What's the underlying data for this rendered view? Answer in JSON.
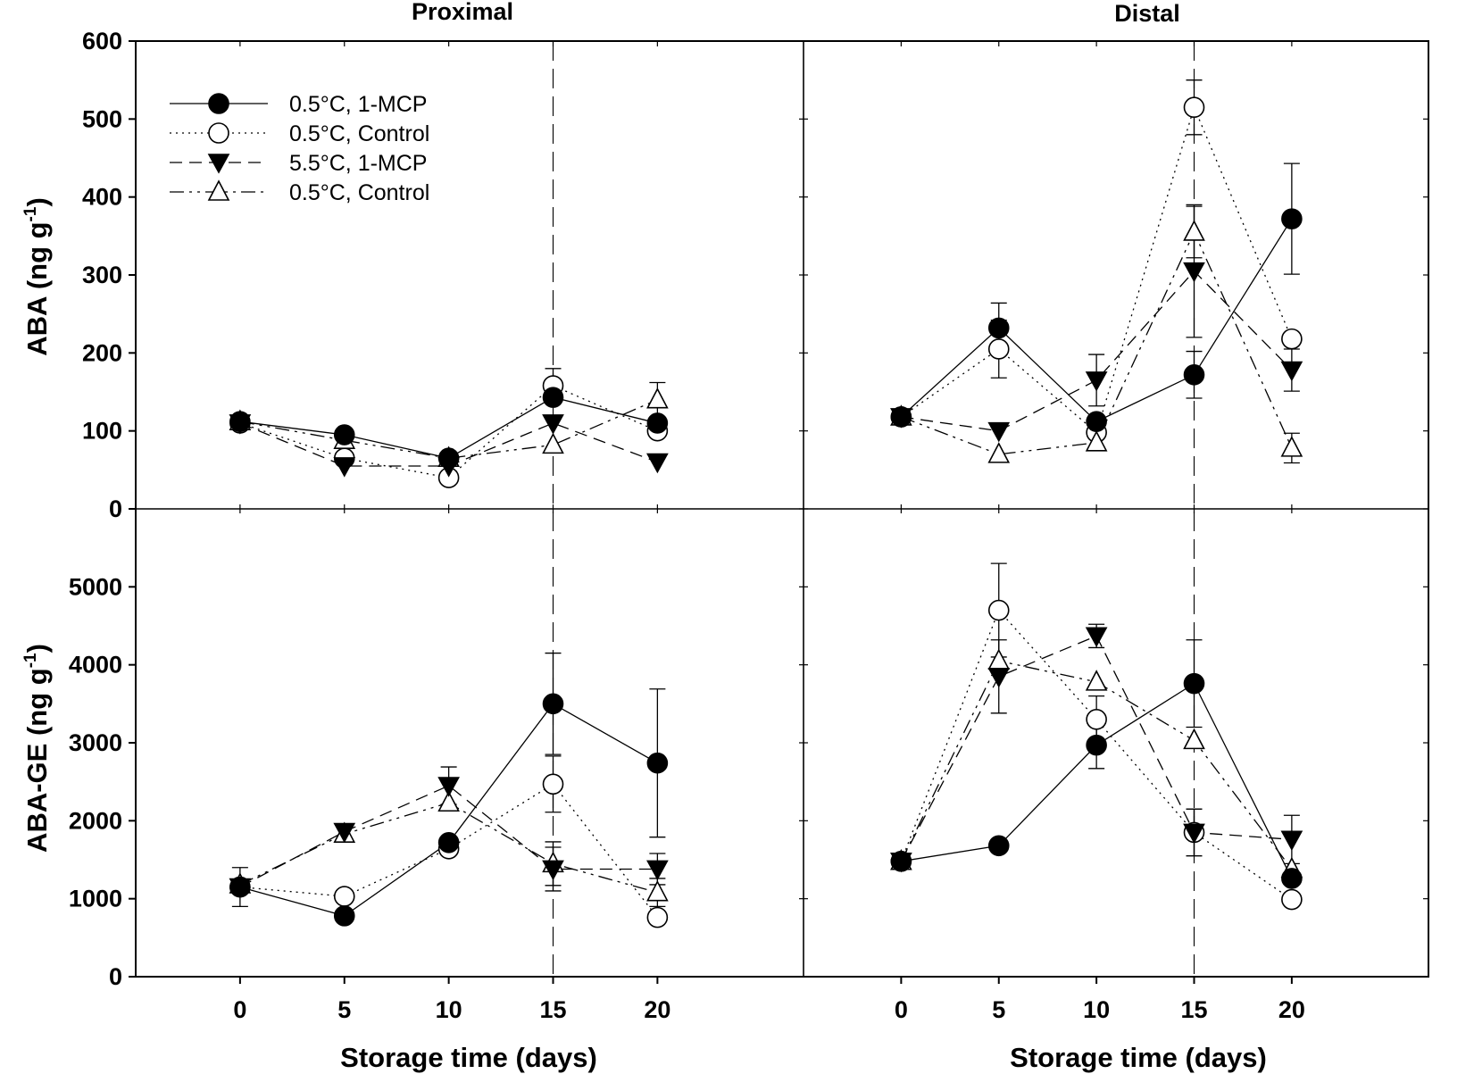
{
  "chart_data": {
    "type": "line",
    "layout": "2x2 panels, shared axes",
    "column_titles": [
      "Proximal",
      "Distal"
    ],
    "row_ylabels": [
      {
        "main": "ABA (ng g",
        "sup": "-1",
        "close": ")"
      },
      {
        "main": "ABA-GE (ng g",
        "sup": "-1",
        "close": ")"
      }
    ],
    "xlabel": "Storage time (days)",
    "x": [
      0,
      5,
      10,
      15,
      20
    ],
    "xticks": [
      "0",
      "5",
      "10",
      "15",
      "20"
    ],
    "xlim": [
      -5,
      27
    ],
    "reference_line_x": 15,
    "rows": [
      {
        "ylim": [
          0,
          600
        ],
        "yticks": [
          "0",
          "100",
          "200",
          "300",
          "400",
          "500",
          "600"
        ]
      },
      {
        "ylim": [
          0,
          6000
        ],
        "yticks": [
          "0",
          "1000",
          "2000",
          "3000",
          "4000",
          "5000"
        ]
      }
    ],
    "legend": [
      {
        "label": "0.5°C, 1-MCP",
        "marker": "filled-circle",
        "line": "solid"
      },
      {
        "label": "0.5°C, Control",
        "marker": "open-circle",
        "line": "dotted"
      },
      {
        "label": "5.5°C, 1-MCP",
        "marker": "filled-triangle-down",
        "line": "dashed"
      },
      {
        "label": "0.5°C, Control",
        "marker": "open-triangle-up",
        "line": "dash-dot-dot"
      }
    ],
    "panels": [
      {
        "column": "Proximal",
        "variable": "ABA",
        "series": [
          {
            "name": "0.5°C, 1-MCP",
            "values": [
              112,
              95,
              65,
              143,
              110
            ],
            "errors": [
              null,
              null,
              null,
              null,
              null
            ]
          },
          {
            "name": "0.5°C, Control",
            "values": [
              110,
              65,
              40,
              158,
              100
            ],
            "errors": [
              null,
              null,
              null,
              22,
              null
            ]
          },
          {
            "name": "5.5°C, 1-MCP",
            "values": [
              110,
              55,
              55,
              110,
              60
            ],
            "errors": [
              null,
              null,
              null,
              null,
              null
            ]
          },
          {
            "name": "0.5°C, Control",
            "values": [
              112,
              88,
              65,
              82,
              140
            ],
            "errors": [
              null,
              null,
              null,
              null,
              22
            ]
          }
        ]
      },
      {
        "column": "Distal",
        "variable": "ABA",
        "series": [
          {
            "name": "0.5°C, 1-MCP",
            "values": [
              118,
              232,
              112,
              172,
              372
            ],
            "errors": [
              null,
              32,
              null,
              30,
              71
            ]
          },
          {
            "name": "0.5°C, Control",
            "values": [
              118,
              205,
              98,
              515,
              218
            ],
            "errors": [
              null,
              37,
              null,
              35,
              null
            ]
          },
          {
            "name": "5.5°C, 1-MCP",
            "values": [
              118,
              100,
              165,
              305,
              178
            ],
            "errors": [
              null,
              null,
              33,
              85,
              27
            ]
          },
          {
            "name": "0.5°C, Control",
            "values": [
              118,
              70,
              85,
              355,
              78
            ],
            "errors": [
              null,
              null,
              null,
              33,
              19
            ]
          }
        ]
      },
      {
        "column": "Proximal",
        "variable": "ABA-GE",
        "series": [
          {
            "name": "0.5°C, 1-MCP",
            "values": [
              1150,
              780,
              1720,
              3500,
              2740
            ],
            "errors": [
              250,
              null,
              null,
              650,
              950
            ]
          },
          {
            "name": "0.5°C, Control",
            "values": [
              1150,
              1030,
              1640,
              2470,
              760
            ],
            "errors": [
              null,
              null,
              null,
              360,
              null
            ]
          },
          {
            "name": "5.5°C, 1-MCP",
            "values": [
              1150,
              1860,
              2450,
              1380,
              1380
            ],
            "errors": [
              null,
              null,
              240,
              280,
              200
            ]
          },
          {
            "name": "0.5°C, Control",
            "values": [
              1180,
              1830,
              2230,
              1450,
              1080
            ],
            "errors": [
              null,
              null,
              null,
              280,
              180
            ]
          }
        ]
      },
      {
        "column": "Distal",
        "variable": "ABA-GE",
        "series": [
          {
            "name": "0.5°C, 1-MCP",
            "values": [
              1480,
              1680,
              2970,
              3760,
              1260
            ],
            "errors": [
              null,
              null,
              300,
              560,
              null
            ]
          },
          {
            "name": "0.5°C, Control",
            "values": [
              1480,
              4700,
              3300,
              1850,
              990
            ],
            "errors": [
              null,
              600,
              300,
              300,
              null
            ]
          },
          {
            "name": "5.5°C, 1-MCP",
            "values": [
              1480,
              3850,
              4370,
              1850,
              1760
            ],
            "errors": [
              null,
              470,
              150,
              300,
              310
            ]
          },
          {
            "name": "0.5°C, Control",
            "values": [
              1480,
              4050,
              3780,
              3030,
              1380
            ],
            "errors": [
              null,
              null,
              null,
              null,
              null
            ]
          }
        ]
      }
    ]
  }
}
